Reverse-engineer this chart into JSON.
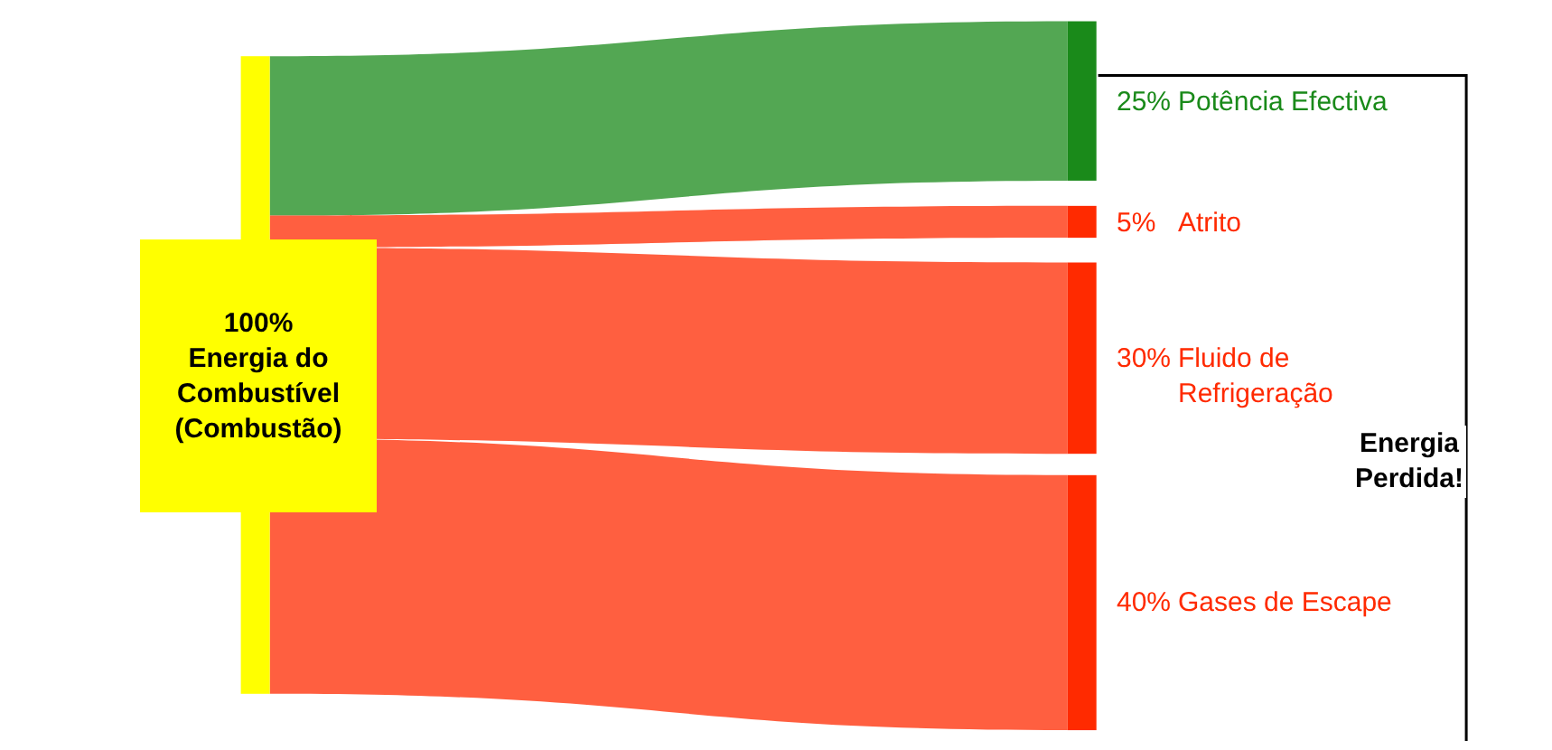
{
  "chart_data": {
    "type": "other",
    "categories": [
      "Energia do\nCombustível\n(Combustão)",
      "Potência Efectiva",
      "Atrito",
      "Fluido de\nRefrigeração",
      "Gases de Escape"
    ],
    "values": [
      100,
      25,
      5,
      30,
      40
    ],
    "value_labels": [
      "100%",
      "25%",
      "5%",
      "30%",
      "40%"
    ],
    "colors": [
      "#ffff00",
      "#1a8a1a",
      "#ff2a00",
      "#ff2a00",
      "#ff2a00"
    ],
    "annotations": [
      "Energia\nPerdida!"
    ]
  }
}
